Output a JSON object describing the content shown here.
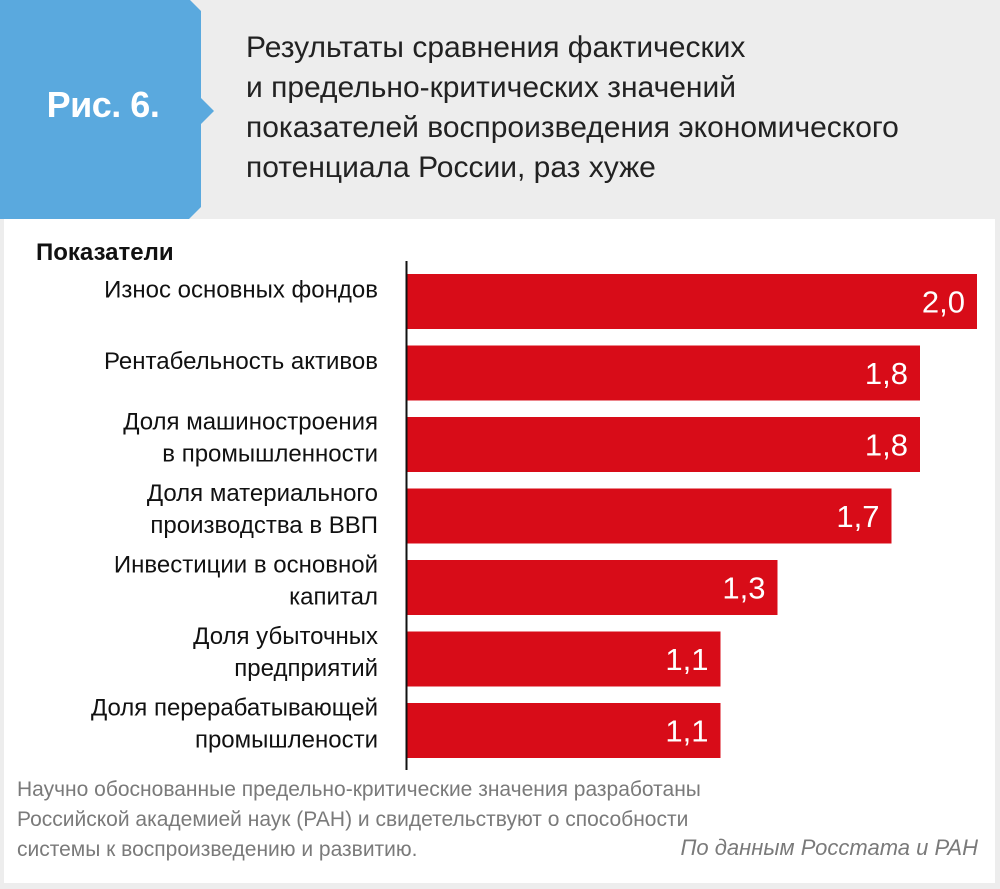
{
  "figure_label": "Рис. 6.",
  "title_lines": [
    "Результаты сравнения фактических",
    "и предельно-критических значений",
    "показателей воспроизведения экономического",
    "потенциала России, раз хуже"
  ],
  "colors": {
    "badge": "#5aa9de",
    "bar": "#d80c18",
    "background": "#ededed",
    "panel": "#ffffff",
    "text": "#222222",
    "note": "#7a7a7a"
  },
  "chart_data": {
    "type": "bar",
    "orientation": "horizontal",
    "title": "Результаты сравнения фактических и предельно-критических значений показателей воспроизведения экономического потенциала России, раз хуже",
    "category_header": "Показатели",
    "categories": [
      [
        "Износ основных фондов"
      ],
      [
        "Рентабельность активов"
      ],
      [
        "Доля машиностроения",
        "в промышленности"
      ],
      [
        "Доля материального",
        "производства в ВВП"
      ],
      [
        "Инвестиции в основной",
        "капитал"
      ],
      [
        "Доля убыточных",
        "предприятий"
      ],
      [
        "Доля перерабатывающей",
        "промышлености"
      ]
    ],
    "values": [
      2.0,
      1.8,
      1.8,
      1.7,
      1.3,
      1.1,
      1.1
    ],
    "value_labels": [
      "2,0",
      "1,8",
      "1,8",
      "1,7",
      "1,3",
      "1,1",
      "1,1"
    ],
    "xlim": [
      0,
      2.0
    ],
    "grid": false,
    "legend": "none"
  },
  "note_lines": [
    "Научно обоснованные предельно-критические значения разработаны",
    "Российской  академией наук (РАН) и свидетельствуют о способности",
    "системы к воспроизведению и  развитию."
  ],
  "source": "По данным Росстата и РАН"
}
